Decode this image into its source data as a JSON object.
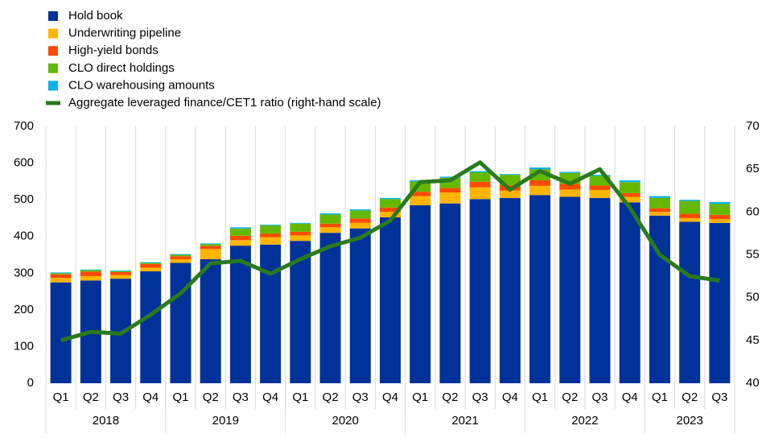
{
  "chart_data": {
    "type": "bar",
    "stacked": true,
    "category_groups": [
      {
        "label": "2018",
        "categories": [
          "Q1",
          "Q2",
          "Q3",
          "Q4"
        ]
      },
      {
        "label": "2019",
        "categories": [
          "Q1",
          "Q2",
          "Q3",
          "Q4"
        ]
      },
      {
        "label": "2020",
        "categories": [
          "Q1",
          "Q2",
          "Q3",
          "Q4"
        ]
      },
      {
        "label": "2021",
        "categories": [
          "Q1",
          "Q2",
          "Q3",
          "Q4"
        ]
      },
      {
        "label": "2022",
        "categories": [
          "Q1",
          "Q2",
          "Q3",
          "Q4"
        ]
      },
      {
        "label": "2023",
        "categories": [
          "Q1",
          "Q2",
          "Q3"
        ]
      }
    ],
    "series": [
      {
        "name": "Hold book",
        "color": "#003299",
        "values": [
          275,
          280,
          285,
          305,
          328,
          338,
          375,
          378,
          388,
          410,
          422,
          452,
          485,
          490,
          502,
          505,
          513,
          508,
          505,
          493,
          457,
          440,
          437
        ]
      },
      {
        "name": "Underwriting pipeline",
        "color": "#ffb400",
        "values": [
          12,
          12,
          10,
          10,
          10,
          28,
          15,
          20,
          15,
          15,
          15,
          15,
          25,
          30,
          32,
          20,
          25,
          20,
          22,
          15,
          10,
          10,
          10
        ]
      },
      {
        "name": "High-yield bonds",
        "color": "#ff4b00",
        "values": [
          10,
          12,
          8,
          10,
          8,
          8,
          12,
          10,
          10,
          10,
          12,
          12,
          12,
          12,
          15,
          15,
          15,
          15,
          12,
          10,
          10,
          12,
          12
        ]
      },
      {
        "name": "CLO direct holdings",
        "color": "#65b800",
        "values": [
          3,
          4,
          2,
          3,
          4,
          5,
          20,
          22,
          22,
          25,
          22,
          23,
          28,
          28,
          26,
          28,
          30,
          30,
          26,
          30,
          28,
          35,
          30
        ]
      },
      {
        "name": "CLO warehousing amounts",
        "color": "#00b1ea",
        "values": [
          2,
          2,
          2,
          2,
          2,
          2,
          3,
          2,
          2,
          3,
          3,
          3,
          3,
          3,
          3,
          2,
          5,
          3,
          3,
          5,
          5,
          3,
          5
        ]
      },
      {
        "name": "Aggregate leveraged finance/CET1 ratio (right-hand scale)",
        "color": "#2a7a1e",
        "axis": "y2",
        "values": [
          45.0,
          46.0,
          45.8,
          48.0,
          50.5,
          54.0,
          54.3,
          52.8,
          54.5,
          56.0,
          57.0,
          59.0,
          63.5,
          63.7,
          65.8,
          62.6,
          64.8,
          63.3,
          65.0,
          60.5,
          55.0,
          52.5,
          52.0
        ]
      }
    ],
    "ylim": [
      0,
      700
    ],
    "yticks": [
      0,
      100,
      200,
      300,
      400,
      500,
      600,
      700
    ],
    "y2lim": [
      40,
      70
    ],
    "y2ticks": [
      40,
      45,
      50,
      55,
      60,
      65,
      70
    ]
  }
}
